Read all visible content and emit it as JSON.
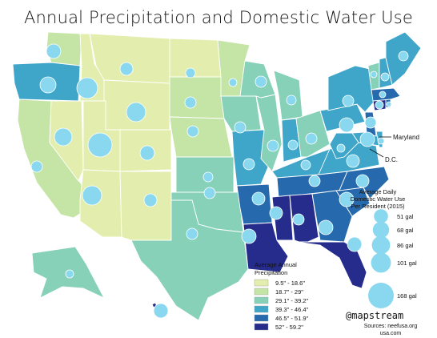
{
  "title": "Annual Precipitation and Domestic Water Use",
  "precip_legend": {
    "title_line1": "Average Annual",
    "title_line2": "Precipitation",
    "classes": [
      {
        "label": "9.5\" - 18.6\"",
        "color": "#e3eeae"
      },
      {
        "label": "18.7\" - 29\"",
        "color": "#c5e5a6"
      },
      {
        "label": "29.1\" - 39.2\"",
        "color": "#86d1b8"
      },
      {
        "label": "39.3\" - 46.4\"",
        "color": "#3fa6c9"
      },
      {
        "label": "46.5\" - 51.9\"",
        "color": "#2669ac"
      },
      {
        "label": "52\" - 59.2\"",
        "color": "#262c8c"
      }
    ]
  },
  "water_legend": {
    "title_line1": "Average Daily",
    "title_line2": "Domestic Water Use",
    "title_line3": "Per Resident (2015)",
    "items": [
      {
        "label": "51 gal",
        "value": 51
      },
      {
        "label": "68 gal",
        "value": 68
      },
      {
        "label": "86 gal",
        "value": 86
      },
      {
        "label": "101 gal",
        "value": 101
      },
      {
        "label": "168 gal",
        "value": 168
      }
    ]
  },
  "annotations": {
    "maryland": "Maryland",
    "dc": "D.C."
  },
  "credit": {
    "handle": "@mapstream",
    "sources_line1": "Sources: neefusa.org",
    "sources_line2": "usa.com"
  },
  "circle_color": "#8ad8ef"
}
